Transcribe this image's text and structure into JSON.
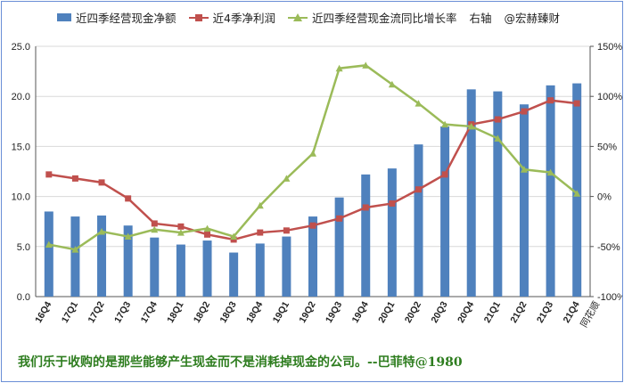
{
  "legend": {
    "bar_label": "近四季经营现金净额",
    "line1_label": "近4季净利润",
    "line2_label": "近四季经营现金流同比增长率",
    "axis_note": "右轴",
    "watermark": "@宏赫臻财"
  },
  "source_label": "同花顺",
  "quote": "我们乐于收购的是那些能够产生现金而不是消耗掉现金的公司。--巴菲特@1980",
  "colors": {
    "bar": "#4f81bd",
    "line1": "#c0504d",
    "line2": "#9bbb59",
    "quote": "#2e7d1f"
  },
  "chart_data": {
    "type": "bar",
    "categories": [
      "16Q4",
      "17Q1",
      "17Q2",
      "17Q3",
      "17Q4",
      "18Q1",
      "18Q2",
      "18Q3",
      "18Q4",
      "19Q1",
      "19Q2",
      "19Q3",
      "19Q4",
      "20Q1",
      "20Q2",
      "20Q3",
      "20Q4",
      "21Q1",
      "21Q2",
      "21Q3",
      "21Q4"
    ],
    "ylim": [
      0,
      25
    ],
    "y_ticks": [
      "0.0",
      "5.0",
      "10.0",
      "15.0",
      "20.0",
      "25.0"
    ],
    "y2lim": [
      -100,
      150
    ],
    "y2_ticks": [
      "-100%",
      "-50%",
      "0%",
      "50%",
      "100%",
      "150%"
    ],
    "grid": true,
    "legend_position": "top",
    "series": [
      {
        "name": "近四季经营现金净额",
        "type": "bar",
        "axis": "left",
        "values": [
          8.5,
          8.0,
          8.1,
          7.1,
          5.9,
          5.2,
          5.6,
          4.4,
          5.3,
          6.0,
          8.0,
          9.9,
          12.2,
          12.8,
          15.2,
          17.0,
          20.7,
          20.5,
          19.2,
          21.1,
          21.3
        ]
      },
      {
        "name": "近4季净利润",
        "type": "line",
        "axis": "left",
        "values": [
          12.2,
          11.8,
          11.4,
          9.8,
          7.3,
          7.0,
          6.2,
          5.7,
          6.4,
          6.6,
          7.1,
          7.8,
          8.9,
          9.3,
          10.7,
          12.2,
          17.2,
          17.7,
          18.5,
          19.6,
          19.3
        ]
      },
      {
        "name": "近四季经营现金流同比增长率",
        "type": "line",
        "axis": "right",
        "values": [
          -48,
          -53,
          -35,
          -40,
          -33,
          -36,
          -32,
          -40,
          -9,
          18,
          43,
          128,
          131,
          112,
          93,
          72,
          70,
          58,
          27,
          24,
          3
        ]
      }
    ]
  }
}
